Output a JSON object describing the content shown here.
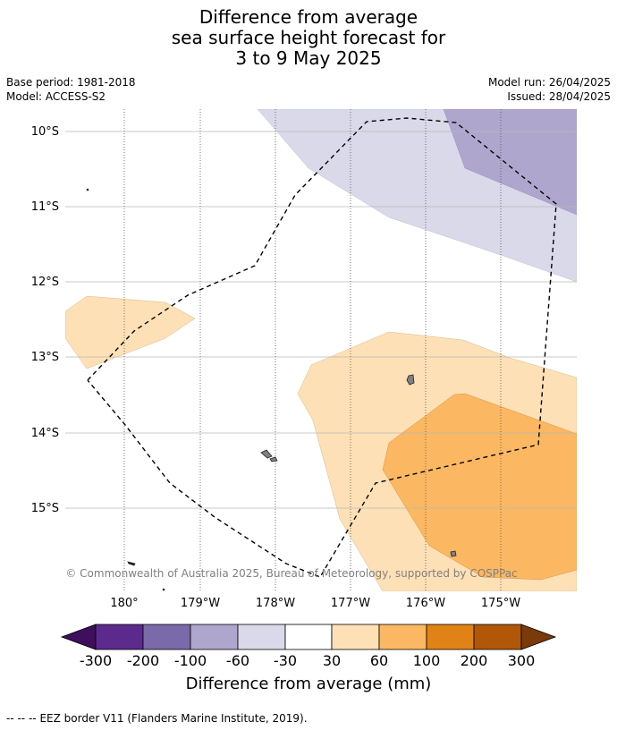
{
  "title": {
    "line1": "Difference from average",
    "line2": "sea surface height forecast for",
    "line3": "3 to 9 May 2025"
  },
  "meta_left": {
    "base_period": "Base period: 1981-2018",
    "model": "Model: ACCESS-S2"
  },
  "meta_right": {
    "model_run": "Model run: 26/04/2025",
    "issued": "Issued: 28/04/2025"
  },
  "map": {
    "lat_labels": [
      "10°S",
      "11°S",
      "12°S",
      "13°S",
      "14°S",
      "15°S"
    ],
    "lon_labels": [
      "180°",
      "179°W",
      "178°W",
      "177°W",
      "176°W",
      "175°W"
    ],
    "copyright": "© Commonwealth of Australia 2025, Bureau of Meteorology, supported by COSPPac"
  },
  "colorbar": {
    "ticks": [
      "-300",
      "-200",
      "-100",
      "-60",
      "-30",
      "30",
      "60",
      "100",
      "200",
      "300"
    ],
    "label": "Difference from average (mm)",
    "colors": [
      "#3f0f5e",
      "#5b2a8c",
      "#7b6aa9",
      "#afa6cd",
      "#d9d9ea",
      "#ffffff",
      "#fde0b5",
      "#fbb761",
      "#e08215",
      "#b05708",
      "#7a3a0a"
    ]
  },
  "legend_note": {
    "symbol": "--  --  --",
    "text": "EEZ border V11 (Flanders Marine Institute, 2019)."
  }
}
